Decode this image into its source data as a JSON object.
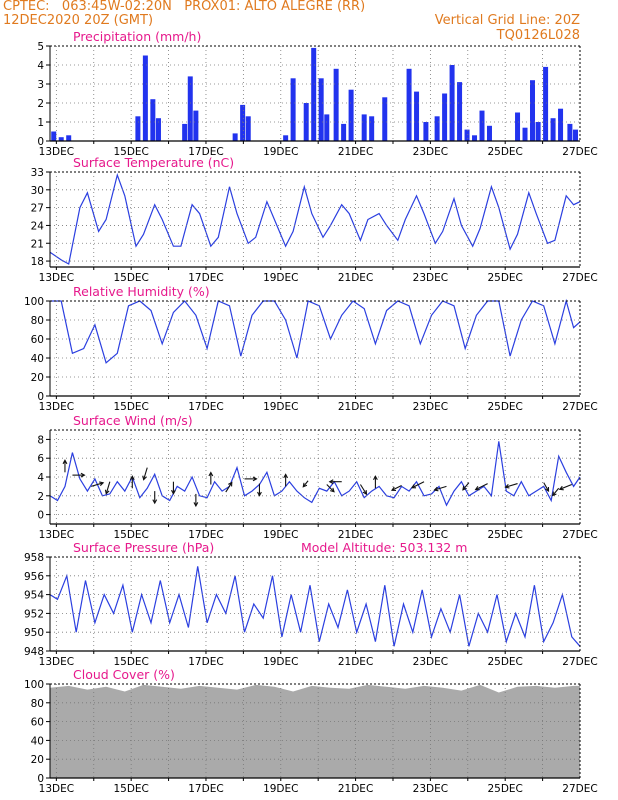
{
  "header": {
    "line1_left": "CPTEC:   063:45W-02:20N   PROX01: ALTO ALEGRE (RR)",
    "line2_left": "12DEC2020 20Z (GMT)",
    "line2_right": "Vertical Grid Line: 20Z",
    "line3_right": "TQ0126L028"
  },
  "colors": {
    "header": "#e07a1f",
    "title": "#e6198c",
    "line": "#2b3fe0",
    "bar": "#2233ee",
    "arrow": "#111111",
    "cloud": "#aaaaaa",
    "grid": "#777777"
  },
  "x_axis": {
    "start": "12DEC2020 20Z",
    "end": "27DEC2020 00Z",
    "tick_labels": [
      "13DEC",
      "15DEC",
      "17DEC",
      "19DEC",
      "21DEC",
      "23DEC",
      "25DEC",
      "27DEC"
    ],
    "tick_days": [
      0.17,
      2.17,
      4.17,
      6.17,
      8.17,
      10.17,
      12.17,
      14.17
    ],
    "days_span": 14.17
  },
  "chart_data": [
    {
      "type": "bar",
      "title": "Precipitation  (mm/h)",
      "ylim": [
        0,
        5
      ],
      "yticks": [
        0,
        1,
        2,
        3,
        4,
        5
      ],
      "x": [
        0.1,
        0.3,
        0.5,
        2.35,
        2.55,
        2.75,
        2.9,
        3.6,
        3.75,
        3.9,
        4.95,
        5.15,
        5.3,
        6.3,
        6.5,
        6.85,
        7.05,
        7.25,
        7.4,
        7.65,
        7.85,
        8.05,
        8.4,
        8.6,
        8.95,
        9.6,
        9.8,
        10.05,
        10.35,
        10.55,
        10.75,
        10.95,
        11.15,
        11.35,
        11.55,
        11.75,
        12.5,
        12.7,
        12.9,
        13.05,
        13.25,
        13.45,
        13.65,
        13.9,
        14.05
      ],
      "values": [
        0.5,
        0.2,
        0.3,
        1.3,
        4.5,
        2.2,
        1.2,
        0.9,
        3.4,
        1.6,
        0.4,
        1.9,
        1.3,
        0.3,
        3.3,
        2.0,
        4.9,
        3.3,
        1.4,
        3.8,
        0.9,
        2.7,
        1.4,
        1.3,
        2.3,
        3.8,
        2.6,
        1.0,
        1.3,
        2.5,
        4.0,
        3.1,
        0.6,
        0.3,
        1.6,
        0.8,
        1.5,
        0.7,
        3.2,
        1.0,
        3.9,
        1.2,
        1.7,
        0.9,
        0.6
      ]
    },
    {
      "type": "line",
      "title": "Surface Temperature (nC)",
      "ylim": [
        17,
        33
      ],
      "yticks": [
        18,
        21,
        24,
        27,
        30,
        33
      ],
      "x": [
        0.0,
        0.3,
        0.5,
        0.8,
        1.0,
        1.3,
        1.5,
        1.8,
        2.0,
        2.3,
        2.5,
        2.8,
        3.0,
        3.3,
        3.5,
        3.8,
        4.0,
        4.3,
        4.5,
        4.8,
        5.0,
        5.3,
        5.5,
        5.8,
        6.0,
        6.3,
        6.5,
        6.8,
        7.0,
        7.3,
        7.5,
        7.8,
        8.0,
        8.3,
        8.5,
        8.8,
        9.0,
        9.3,
        9.5,
        9.8,
        10.0,
        10.3,
        10.5,
        10.8,
        11.0,
        11.3,
        11.5,
        11.8,
        12.0,
        12.3,
        12.5,
        12.8,
        13.0,
        13.3,
        13.5,
        13.8,
        14.0,
        14.17
      ],
      "values": [
        19.5,
        18.2,
        17.5,
        27,
        29.5,
        23,
        25,
        32.5,
        29,
        20.5,
        22.5,
        27.5,
        25,
        20.5,
        20.5,
        27.5,
        26,
        20.5,
        22,
        30.5,
        26,
        21,
        22,
        28,
        25,
        20.5,
        23,
        30.5,
        26,
        22,
        24,
        27.5,
        26,
        21.5,
        25,
        26,
        24,
        21.5,
        25,
        29,
        26,
        21,
        23,
        28.5,
        24,
        20.5,
        23.5,
        30.5,
        27,
        20,
        22.5,
        29.5,
        26,
        21,
        21.5,
        29,
        27.5,
        28
      ]
    },
    {
      "type": "line",
      "title": "Relative Humidity (%)",
      "ylim": [
        0,
        100
      ],
      "yticks": [
        0,
        20,
        40,
        60,
        80,
        100
      ],
      "x": [
        0.0,
        0.3,
        0.6,
        0.9,
        1.2,
        1.5,
        1.8,
        2.1,
        2.4,
        2.7,
        3.0,
        3.3,
        3.6,
        3.9,
        4.2,
        4.5,
        4.8,
        5.1,
        5.4,
        5.7,
        6.0,
        6.3,
        6.6,
        6.9,
        7.2,
        7.5,
        7.8,
        8.1,
        8.4,
        8.7,
        9.0,
        9.3,
        9.6,
        9.9,
        10.2,
        10.5,
        10.8,
        11.1,
        11.4,
        11.7,
        12.0,
        12.3,
        12.6,
        12.9,
        13.2,
        13.5,
        13.8,
        14.0,
        14.17
      ],
      "values": [
        100,
        100,
        45,
        50,
        75,
        35,
        45,
        95,
        100,
        90,
        55,
        88,
        100,
        85,
        50,
        100,
        95,
        42,
        85,
        100,
        100,
        80,
        40,
        100,
        95,
        60,
        85,
        100,
        92,
        55,
        90,
        100,
        95,
        55,
        85,
        100,
        95,
        50,
        85,
        100,
        100,
        42,
        80,
        100,
        95,
        55,
        100,
        72,
        78
      ]
    },
    {
      "type": "line",
      "title": "Surface Wind (m/s)",
      "ylim": [
        -1,
        9
      ],
      "yticks": [
        0,
        2,
        4,
        6,
        8
      ],
      "x": [
        0.0,
        0.2,
        0.4,
        0.6,
        0.8,
        1.0,
        1.2,
        1.4,
        1.6,
        1.8,
        2.0,
        2.2,
        2.4,
        2.6,
        2.8,
        3.0,
        3.2,
        3.4,
        3.6,
        3.8,
        4.0,
        4.2,
        4.4,
        4.6,
        4.8,
        5.0,
        5.2,
        5.4,
        5.6,
        5.8,
        6.0,
        6.2,
        6.4,
        6.6,
        6.8,
        7.0,
        7.2,
        7.4,
        7.6,
        7.8,
        8.0,
        8.2,
        8.4,
        8.6,
        8.8,
        9.0,
        9.2,
        9.4,
        9.6,
        9.8,
        10.0,
        10.2,
        10.4,
        10.6,
        10.8,
        11.0,
        11.2,
        11.4,
        11.6,
        11.8,
        12.0,
        12.2,
        12.4,
        12.6,
        12.8,
        13.0,
        13.2,
        13.4,
        13.6,
        13.8,
        14.0,
        14.17
      ],
      "values": [
        2,
        1.5,
        3,
        6.6,
        3.8,
        2.5,
        3.8,
        2,
        2.2,
        3.5,
        2.5,
        4,
        1.8,
        2.8,
        4.3,
        2,
        1.5,
        3,
        2.5,
        4,
        2,
        1.8,
        3.5,
        2.5,
        3,
        5,
        2,
        2.5,
        3.2,
        4.5,
        2,
        2.5,
        3.5,
        2.5,
        1.8,
        1.3,
        2.8,
        2.5,
        3.5,
        2,
        2.5,
        3.5,
        1.8,
        2.5,
        3,
        2,
        1.8,
        3,
        2.5,
        3.5,
        2,
        2.2,
        3,
        1,
        2.5,
        3.5,
        2,
        2.5,
        3,
        2,
        7.8,
        2.5,
        2,
        3.5,
        2,
        2.5,
        3,
        1.5,
        6.2,
        4.5,
        3,
        4
      ]
    },
    {
      "type": "line",
      "title": "Surface Pressure (hPa)",
      "annotation": "Model Altitude: 503.132  m",
      "ylim": [
        948,
        958
      ],
      "yticks": [
        948,
        950,
        952,
        954,
        956,
        958
      ],
      "x": [
        0.0,
        0.2,
        0.45,
        0.7,
        0.95,
        1.2,
        1.45,
        1.7,
        1.95,
        2.2,
        2.45,
        2.7,
        2.95,
        3.2,
        3.45,
        3.7,
        3.95,
        4.2,
        4.45,
        4.7,
        4.95,
        5.2,
        5.45,
        5.7,
        5.95,
        6.2,
        6.45,
        6.7,
        6.95,
        7.2,
        7.45,
        7.7,
        7.95,
        8.2,
        8.45,
        8.7,
        8.95,
        9.2,
        9.45,
        9.7,
        9.95,
        10.2,
        10.45,
        10.7,
        10.95,
        11.2,
        11.45,
        11.7,
        11.95,
        12.2,
        12.45,
        12.7,
        12.95,
        13.2,
        13.45,
        13.7,
        13.95,
        14.17
      ],
      "values": [
        954,
        953.5,
        956,
        950,
        955.5,
        951,
        954,
        952,
        955,
        950,
        954,
        951,
        955.5,
        951,
        954,
        950.5,
        957,
        951,
        954,
        952,
        956,
        950,
        953,
        951.5,
        956,
        949.5,
        954,
        950,
        955,
        949,
        953,
        950.5,
        954.5,
        950,
        953,
        949,
        955,
        948.5,
        953,
        950,
        954.5,
        949.5,
        952.5,
        950,
        954,
        948.5,
        952,
        950,
        954,
        949,
        952,
        949.5,
        955,
        949,
        951,
        954,
        949.5,
        948.5
      ]
    },
    {
      "type": "area",
      "title": "Cloud Cover (%)",
      "ylim": [
        0,
        100
      ],
      "yticks": [
        0,
        20,
        40,
        60,
        80,
        100
      ],
      "x": [
        0.0,
        0.5,
        1.0,
        1.5,
        2.0,
        2.5,
        3.0,
        3.5,
        4.0,
        4.5,
        5.0,
        5.5,
        6.0,
        6.5,
        7.0,
        7.5,
        8.0,
        8.5,
        9.0,
        9.5,
        10.0,
        10.5,
        11.0,
        11.5,
        12.0,
        12.5,
        13.0,
        13.5,
        14.0,
        14.17
      ],
      "values": [
        96,
        98,
        94,
        97,
        92,
        99,
        97,
        95,
        98,
        96,
        94,
        99,
        97,
        92,
        98,
        96,
        95,
        99,
        97,
        95,
        98,
        96,
        93,
        99,
        91,
        97,
        98,
        96,
        98,
        98
      ]
    }
  ]
}
